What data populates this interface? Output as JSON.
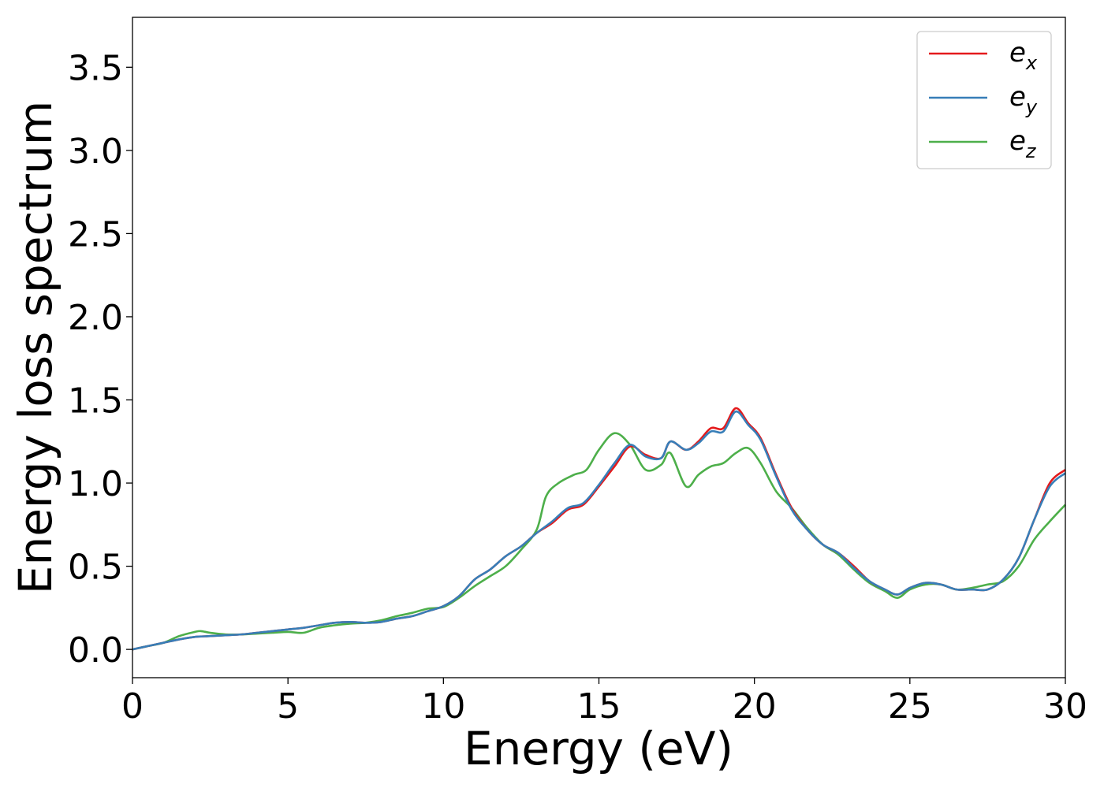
{
  "chart_data": {
    "type": "line",
    "title": "",
    "xlabel": "Energy (eV)",
    "ylabel": "Energy loss spectrum",
    "xlim": [
      0,
      30
    ],
    "ylim": [
      -0.17,
      3.8
    ],
    "xticks": [
      0,
      5,
      10,
      15,
      20,
      25,
      30
    ],
    "xtick_labels": [
      "0",
      "5",
      "10",
      "15",
      "20",
      "25",
      "30"
    ],
    "yticks": [
      0.0,
      0.5,
      1.0,
      1.5,
      2.0,
      2.5,
      3.0,
      3.5
    ],
    "ytick_labels": [
      "0.0",
      "0.5",
      "1.0",
      "1.5",
      "2.0",
      "2.5",
      "3.0",
      "3.5"
    ],
    "grid": false,
    "legend_position": "top-right",
    "series": [
      {
        "name": "e_x",
        "legend_base": "e",
        "legend_sub": "x",
        "color": "#e41a1c",
        "x": [
          0,
          0.5,
          1.0,
          1.5,
          2.0,
          2.5,
          3.0,
          3.5,
          4.0,
          4.5,
          5.0,
          5.5,
          6.0,
          6.5,
          7.0,
          7.5,
          8.0,
          8.5,
          9.0,
          9.5,
          10.0,
          10.5,
          11.0,
          11.5,
          12.0,
          12.5,
          13.0,
          13.5,
          14.0,
          14.5,
          15.0,
          15.5,
          16.0,
          16.5,
          17.0,
          17.3,
          17.8,
          18.2,
          18.6,
          19.0,
          19.4,
          19.8,
          20.2,
          20.7,
          21.2,
          21.7,
          22.2,
          22.7,
          23.2,
          23.7,
          24.2,
          24.6,
          25.0,
          25.5,
          26.0,
          26.5,
          27.0,
          27.5,
          28.0,
          28.5,
          29.0,
          29.5,
          30.0
        ],
        "y": [
          0.0,
          0.02,
          0.04,
          0.06,
          0.075,
          0.08,
          0.085,
          0.09,
          0.1,
          0.11,
          0.12,
          0.13,
          0.145,
          0.16,
          0.165,
          0.16,
          0.165,
          0.185,
          0.2,
          0.23,
          0.26,
          0.32,
          0.42,
          0.48,
          0.56,
          0.62,
          0.7,
          0.76,
          0.84,
          0.87,
          0.98,
          1.1,
          1.22,
          1.17,
          1.15,
          1.25,
          1.2,
          1.25,
          1.33,
          1.33,
          1.45,
          1.36,
          1.27,
          1.05,
          0.85,
          0.72,
          0.63,
          0.58,
          0.5,
          0.41,
          0.36,
          0.33,
          0.37,
          0.4,
          0.39,
          0.36,
          0.36,
          0.36,
          0.42,
          0.55,
          0.78,
          1.0,
          1.08
        ]
      },
      {
        "name": "e_y",
        "legend_base": "e",
        "legend_sub": "y",
        "color": "#377eb8",
        "x": [
          0,
          0.5,
          1.0,
          1.5,
          2.0,
          2.5,
          3.0,
          3.5,
          4.0,
          4.5,
          5.0,
          5.5,
          6.0,
          6.5,
          7.0,
          7.5,
          8.0,
          8.5,
          9.0,
          9.5,
          10.0,
          10.5,
          11.0,
          11.5,
          12.0,
          12.5,
          13.0,
          13.5,
          14.0,
          14.5,
          15.0,
          15.5,
          16.0,
          16.5,
          17.0,
          17.3,
          17.8,
          18.2,
          18.6,
          19.0,
          19.4,
          19.8,
          20.2,
          20.7,
          21.2,
          21.7,
          22.2,
          22.7,
          23.2,
          23.7,
          24.2,
          24.6,
          25.0,
          25.5,
          26.0,
          26.5,
          27.0,
          27.5,
          28.0,
          28.5,
          29.0,
          29.5,
          30.0
        ],
        "y": [
          0.0,
          0.02,
          0.04,
          0.06,
          0.075,
          0.08,
          0.085,
          0.09,
          0.1,
          0.11,
          0.12,
          0.13,
          0.145,
          0.16,
          0.165,
          0.16,
          0.165,
          0.185,
          0.2,
          0.23,
          0.26,
          0.32,
          0.42,
          0.48,
          0.56,
          0.62,
          0.7,
          0.77,
          0.85,
          0.88,
          0.99,
          1.12,
          1.23,
          1.16,
          1.15,
          1.25,
          1.2,
          1.24,
          1.31,
          1.31,
          1.43,
          1.35,
          1.26,
          1.04,
          0.84,
          0.72,
          0.63,
          0.58,
          0.49,
          0.41,
          0.36,
          0.33,
          0.37,
          0.4,
          0.39,
          0.36,
          0.36,
          0.36,
          0.42,
          0.55,
          0.78,
          0.98,
          1.06
        ]
      },
      {
        "name": "e_z",
        "legend_base": "e",
        "legend_sub": "z",
        "color": "#4daf4a",
        "x": [
          0,
          0.5,
          1.0,
          1.5,
          2.0,
          2.2,
          2.5,
          3.0,
          3.5,
          4.0,
          4.5,
          5.0,
          5.5,
          6.0,
          6.5,
          7.0,
          7.5,
          8.0,
          8.5,
          9.0,
          9.5,
          10.0,
          10.5,
          11.0,
          11.5,
          12.0,
          12.5,
          13.0,
          13.3,
          13.7,
          14.2,
          14.6,
          15.0,
          15.5,
          16.0,
          16.5,
          17.0,
          17.3,
          17.8,
          18.2,
          18.6,
          19.0,
          19.4,
          19.8,
          20.2,
          20.7,
          21.2,
          21.7,
          22.2,
          22.7,
          23.2,
          23.7,
          24.2,
          24.6,
          25.0,
          25.5,
          26.0,
          26.5,
          27.0,
          27.5,
          28.0,
          28.5,
          29.0,
          29.5,
          30.0
        ],
        "y": [
          0.0,
          0.02,
          0.04,
          0.08,
          0.105,
          0.11,
          0.1,
          0.09,
          0.09,
          0.095,
          0.1,
          0.105,
          0.1,
          0.13,
          0.145,
          0.155,
          0.16,
          0.175,
          0.2,
          0.22,
          0.245,
          0.255,
          0.31,
          0.38,
          0.44,
          0.5,
          0.6,
          0.72,
          0.92,
          1.0,
          1.05,
          1.08,
          1.2,
          1.3,
          1.23,
          1.08,
          1.11,
          1.18,
          0.98,
          1.05,
          1.1,
          1.12,
          1.18,
          1.21,
          1.12,
          0.95,
          0.85,
          0.73,
          0.63,
          0.57,
          0.48,
          0.4,
          0.35,
          0.31,
          0.36,
          0.39,
          0.39,
          0.36,
          0.37,
          0.39,
          0.41,
          0.5,
          0.66,
          0.77,
          0.87
        ]
      }
    ]
  }
}
